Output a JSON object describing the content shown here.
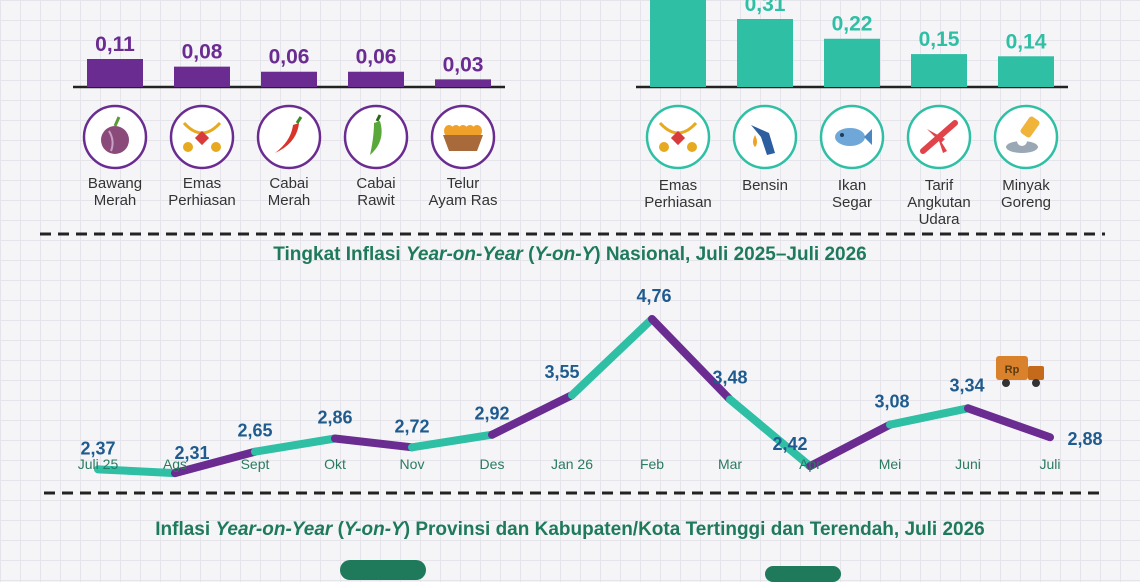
{
  "colors": {
    "purple": "#6a2c91",
    "teal": "#2ebfa5",
    "blue": "#1f5b8e",
    "green": "#1f7a5c"
  },
  "left_bars": {
    "chart_data": {
      "type": "bar",
      "values": [
        0.11,
        0.08,
        0.06,
        0.06,
        0.03
      ],
      "value_labels": [
        "0,11",
        "0,08",
        "0,06",
        "0,06",
        "0,03"
      ],
      "categories": [
        "Bawang Merah",
        "Emas Perhiasan",
        "Cabai Merah",
        "Cabai Rawit",
        "Telur Ayam Ras"
      ]
    },
    "items": [
      {
        "label1": "Bawang",
        "label2": "Merah",
        "icon": "onion-icon"
      },
      {
        "label1": "Emas",
        "label2": "Perhiasan",
        "icon": "gold-jewelry-icon"
      },
      {
        "label1": "Cabai",
        "label2": "Merah",
        "icon": "red-chili-icon"
      },
      {
        "label1": "Cabai",
        "label2": "Rawit",
        "icon": "green-chili-icon"
      },
      {
        "label1": "Telur",
        "label2": "Ayam Ras",
        "icon": "egg-basket-icon"
      }
    ]
  },
  "right_bars": {
    "chart_data": {
      "type": "bar",
      "values": [
        null,
        0.31,
        0.22,
        0.15,
        0.14
      ],
      "value_labels": [
        "",
        "0,31",
        "0,22",
        "0,15",
        "0,14"
      ],
      "categories": [
        "Emas Perhiasan",
        "Bensin",
        "Ikan Segar",
        "Tarif Angkutan Udara",
        "Minyak Goreng"
      ]
    },
    "items": [
      {
        "label1": "Emas",
        "label2": "Perhiasan",
        "label3": "",
        "icon": "gold-jewelry-icon"
      },
      {
        "label1": "Bensin",
        "label2": "",
        "label3": "",
        "icon": "fuel-pump-icon"
      },
      {
        "label1": "Ikan",
        "label2": "Segar",
        "label3": "",
        "icon": "fish-icon"
      },
      {
        "label1": "Tarif",
        "label2": "Angkutan",
        "label3": "Udara",
        "icon": "airplane-icon"
      },
      {
        "label1": "Minyak",
        "label2": "Goreng",
        "label3": "",
        "icon": "cooking-oil-icon"
      }
    ]
  },
  "line_chart": {
    "title_parts": [
      "Tingkat Inflasi ",
      "Year-on-Year",
      " (",
      "Y-on-Y",
      ") Nasional, Juli 2025–Juli 2026"
    ],
    "chart_data": {
      "type": "line",
      "categories": [
        "Juli 25",
        "Ags",
        "Sept",
        "Okt",
        "Nov",
        "Des",
        "Jan 26",
        "Feb",
        "Mar",
        "Apr",
        "Mei",
        "Juni",
        "Juli"
      ],
      "values": [
        2.37,
        2.31,
        2.65,
        2.86,
        2.72,
        2.92,
        3.55,
        4.76,
        3.48,
        2.42,
        3.08,
        3.34,
        2.88
      ],
      "value_labels": [
        "2,37",
        "2,31",
        "2,65",
        "2,86",
        "2,72",
        "2,92",
        "3,55",
        "4,76",
        "3,48",
        "2,42",
        "3,08",
        "3,34",
        "2,88"
      ]
    },
    "truck_label": "Rp"
  },
  "bottom_title_parts": [
    "Inflasi ",
    "Year-on-Year",
    " (",
    "Y-on-Y",
    ") Provinsi dan Kabupaten/Kota Tertinggi dan Terendah, Juli 2026"
  ]
}
